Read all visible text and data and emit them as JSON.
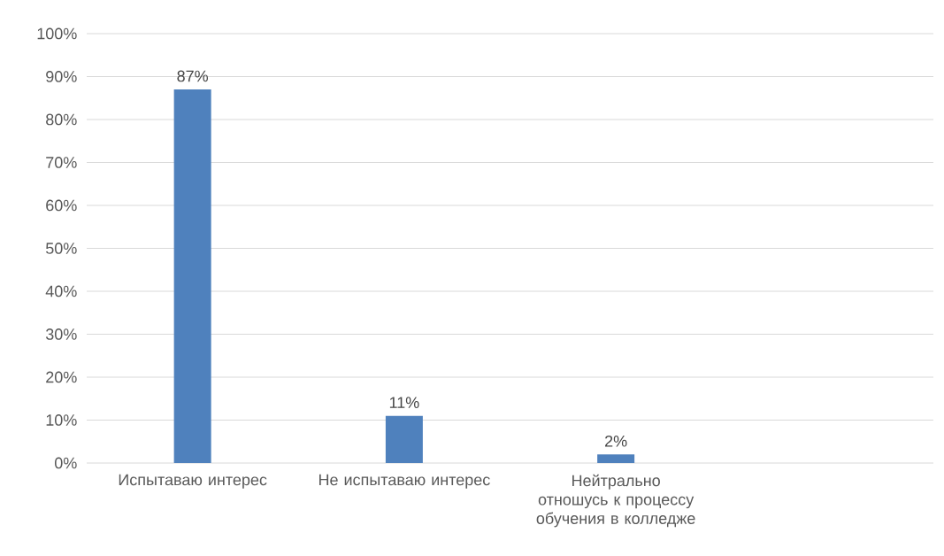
{
  "chart_data": {
    "type": "bar",
    "categories": [
      "Испытаваю интерес",
      "Не испытаваю интерес",
      "Нейтрально отношусь к процессу обучения в колледже",
      null
    ],
    "values": [
      87,
      11,
      2,
      null
    ],
    "value_labels": [
      "87%",
      "11%",
      "2%",
      null
    ],
    "color": "#4f81bd",
    "ylim": [
      0,
      100
    ],
    "yticks": [
      {
        "value": 0,
        "label": "0%"
      },
      {
        "value": 10,
        "label": "10%"
      },
      {
        "value": 20,
        "label": "20%"
      },
      {
        "value": 30,
        "label": "30%"
      },
      {
        "value": 40,
        "label": "40%"
      },
      {
        "value": 50,
        "label": "50%"
      },
      {
        "value": 60,
        "label": "60%"
      },
      {
        "value": 70,
        "label": "70%"
      },
      {
        "value": 80,
        "label": "80%"
      },
      {
        "value": 90,
        "label": "90%"
      },
      {
        "value": 100,
        "label": "100%"
      }
    ],
    "grid": "y"
  }
}
